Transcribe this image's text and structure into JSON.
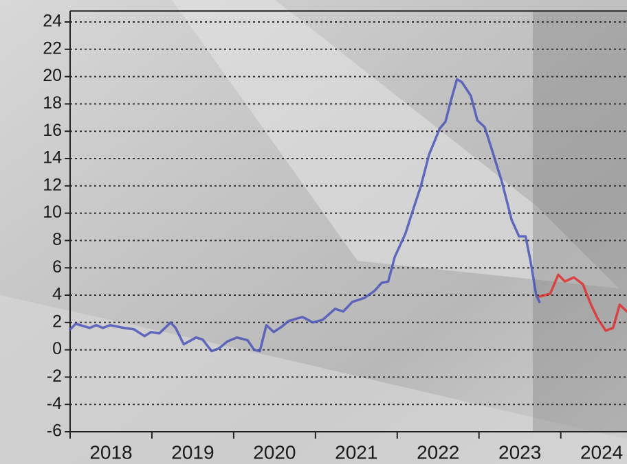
{
  "chart_data": {
    "type": "line",
    "xlim": [
      2018,
      2024.81
    ],
    "xticks": [
      2018,
      2019,
      2020,
      2021,
      2022,
      2023,
      2024
    ],
    "ylim": [
      -6,
      24
    ],
    "yticks": [
      -6,
      -4,
      -2,
      0,
      2,
      4,
      6,
      8,
      10,
      12,
      14,
      16,
      18,
      20,
      22,
      24
    ],
    "grid": true,
    "series": [
      {
        "color": "#4a55b8",
        "x": [
          2018.0,
          2018.07,
          2018.24,
          2018.32,
          2018.4,
          2018.49,
          2018.66,
          2018.78,
          2018.91,
          2018.99,
          2019.09,
          2019.23,
          2019.29,
          2019.39,
          2019.54,
          2019.62,
          2019.73,
          2019.82,
          2019.92,
          2020.04,
          2020.17,
          2020.25,
          2020.32,
          2020.4,
          2020.49,
          2020.59,
          2020.67,
          2020.84,
          2020.97,
          2021.09,
          2021.24,
          2021.34,
          2021.45,
          2021.6,
          2021.72,
          2021.81,
          2021.89,
          2021.97,
          2022.1,
          2022.18,
          2022.29,
          2022.39,
          2022.52,
          2022.59,
          2022.65,
          2022.73,
          2022.79,
          2022.9,
          2022.98,
          2023.07,
          2023.15,
          2023.28,
          2023.4,
          2023.49,
          2023.57,
          2023.63,
          2023.7,
          2023.74
        ],
        "values": [
          1.5,
          1.9,
          1.6,
          1.8,
          1.6,
          1.8,
          1.6,
          1.5,
          1.0,
          1.3,
          1.2,
          2.0,
          1.6,
          0.4,
          0.9,
          0.75,
          -0.1,
          0.1,
          0.6,
          0.9,
          0.7,
          0,
          -0.1,
          1.8,
          1.3,
          1.7,
          2.1,
          2.4,
          2.0,
          2.2,
          3.0,
          2.8,
          3.5,
          3.8,
          4.3,
          4.9,
          5.0,
          6.8,
          8.5,
          10,
          12,
          14.3,
          16.2,
          16.7,
          18.1,
          19.8,
          19.6,
          18.6,
          16.8,
          16.3,
          14.8,
          12.3,
          9.5,
          8.3,
          8.3,
          6.5,
          4.0,
          3.5
        ]
      },
      {
        "color": "#e03030",
        "x": [
          2023.74,
          2023.87,
          2023.97,
          2024.05,
          2024.16,
          2024.27,
          2024.37,
          2024.45,
          2024.55,
          2024.64,
          2024.72,
          2024.81
        ],
        "values": [
          3.9,
          4.1,
          5.5,
          5.0,
          5.3,
          4.8,
          3.3,
          2.3,
          1.4,
          1.6,
          3.3,
          2.8
        ]
      }
    ]
  }
}
